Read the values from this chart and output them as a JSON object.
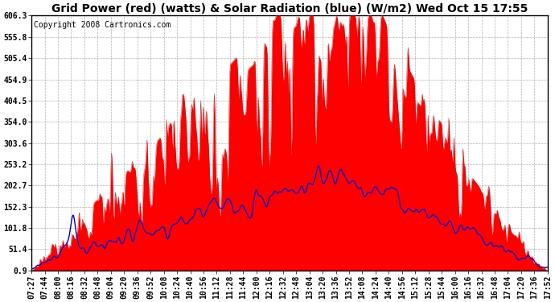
{
  "title": "Grid Power (red) (watts) & Solar Radiation (blue) (W/m2) Wed Oct 15 17:55",
  "copyright": "Copyright 2008 Cartronics.com",
  "y_min": 0.9,
  "y_max": 606.3,
  "y_ticks": [
    0.9,
    51.4,
    101.8,
    152.3,
    202.7,
    253.2,
    303.6,
    354.0,
    404.5,
    454.9,
    505.4,
    555.8,
    606.3
  ],
  "x_labels": [
    "07:27",
    "07:44",
    "08:00",
    "08:16",
    "08:32",
    "08:48",
    "09:04",
    "09:20",
    "09:36",
    "09:52",
    "10:08",
    "10:24",
    "10:40",
    "10:56",
    "11:12",
    "11:28",
    "11:44",
    "12:00",
    "12:16",
    "12:32",
    "12:48",
    "13:04",
    "13:20",
    "13:36",
    "13:52",
    "14:08",
    "14:24",
    "14:40",
    "14:56",
    "15:12",
    "15:28",
    "15:44",
    "16:00",
    "16:16",
    "16:32",
    "16:48",
    "17:04",
    "17:20",
    "17:36",
    "17:52"
  ],
  "bg_color": "#ffffff",
  "plot_bg_color": "#ffffff",
  "grid_color": "#aaaaaa",
  "red_color": "#ff0000",
  "blue_color": "#0000cc",
  "title_fontsize": 10,
  "copyright_fontsize": 7,
  "tick_fontsize": 7
}
